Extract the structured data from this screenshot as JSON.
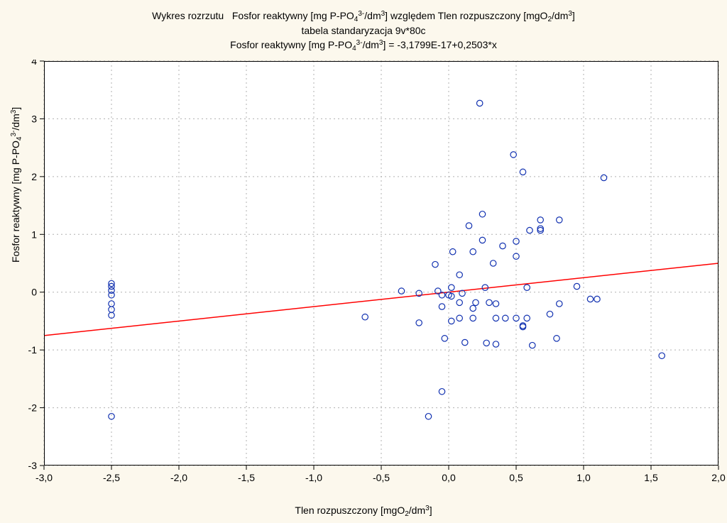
{
  "chart": {
    "type": "scatter",
    "title_line1_a": "Wykres rozrzutu",
    "title_line1_b": "Fosfor reaktywny [mg P-PO",
    "title_line1_b_sub": "4",
    "title_line1_b_sup": "3-",
    "title_line1_c": "/dm",
    "title_line1_c_sup": "3",
    "title_line1_d": "] względem Tlen rozpuszczony [mgO",
    "title_line1_d_sub": "2",
    "title_line1_e": "/dm",
    "title_line1_e_sup": "3",
    "title_line1_f": "]",
    "title_line2": "tabela standaryzacja 9v*80c",
    "title_line3_a": "Fosfor reaktywny [mg P-PO",
    "title_line3_a_sub": "4",
    "title_line3_a_sup": "3-",
    "title_line3_b": "/dm",
    "title_line3_b_sup": "3",
    "title_line3_c": "] = -3,1799E-17+0,2503*x",
    "xlabel_a": "Tlen rozpuszczony [mgO",
    "xlabel_sub": "2",
    "xlabel_b": "/dm",
    "xlabel_sup": "3",
    "xlabel_c": "]",
    "ylabel_a": "Fosfor reaktywny [mg P-PO",
    "ylabel_sub": "4",
    "ylabel_sup": "3-",
    "ylabel_b": "/dm",
    "ylabel_b_sup": "3",
    "ylabel_c": "]",
    "xlim": [
      -3.0,
      2.0
    ],
    "ylim": [
      -3.0,
      4.0
    ],
    "xtick_step": 0.5,
    "ytick_step": 1.0,
    "xticks": [
      "-3,0",
      "-2,5",
      "-2,0",
      "-1,5",
      "-1,0",
      "-0,5",
      "0,0",
      "0,5",
      "1,0",
      "1,5",
      "2,0"
    ],
    "yticks": [
      "-3",
      "-2",
      "-1",
      "0",
      "1",
      "2",
      "3",
      "4"
    ],
    "background_color": "#fcf8ed",
    "plot_bg": "#ffffff",
    "grid_color": "#b0b0b0",
    "grid_dash": "2,4",
    "marker_stroke": "#1030b0",
    "marker_fill": "none",
    "marker_radius": 4.2,
    "marker_stroke_width": 1.2,
    "regression": {
      "slope": 0.2503,
      "intercept": -3.1799e-17,
      "color": "#ff0000",
      "width": 1.5
    },
    "title_fontsize": 14,
    "label_fontsize": 14,
    "tick_fontsize": 14,
    "points": [
      [
        -2.5,
        0.15
      ],
      [
        -2.5,
        0.1
      ],
      [
        -2.5,
        0.03
      ],
      [
        -2.5,
        -0.05
      ],
      [
        -2.5,
        -0.2
      ],
      [
        -2.5,
        -0.3
      ],
      [
        -2.5,
        -0.4
      ],
      [
        -2.5,
        -2.15
      ],
      [
        -0.62,
        -0.43
      ],
      [
        -0.35,
        0.02
      ],
      [
        -0.22,
        -0.02
      ],
      [
        -0.22,
        -0.53
      ],
      [
        -0.15,
        -2.15
      ],
      [
        -0.1,
        0.48
      ],
      [
        -0.08,
        0.02
      ],
      [
        -0.05,
        -0.05
      ],
      [
        -0.05,
        -0.25
      ],
      [
        -0.03,
        -0.8
      ],
      [
        -0.05,
        -1.72
      ],
      [
        0.0,
        -0.05
      ],
      [
        0.02,
        0.08
      ],
      [
        0.02,
        -0.07
      ],
      [
        0.02,
        -0.5
      ],
      [
        0.03,
        0.7
      ],
      [
        0.08,
        0.3
      ],
      [
        0.08,
        -0.18
      ],
      [
        0.08,
        -0.45
      ],
      [
        0.1,
        -0.02
      ],
      [
        0.12,
        -0.87
      ],
      [
        0.15,
        1.15
      ],
      [
        0.18,
        0.7
      ],
      [
        0.18,
        -0.28
      ],
      [
        0.18,
        -0.45
      ],
      [
        0.2,
        -0.18
      ],
      [
        0.23,
        3.27
      ],
      [
        0.25,
        1.35
      ],
      [
        0.25,
        0.9
      ],
      [
        0.27,
        0.08
      ],
      [
        0.28,
        -0.88
      ],
      [
        0.3,
        -0.18
      ],
      [
        0.33,
        0.5
      ],
      [
        0.35,
        -0.2
      ],
      [
        0.35,
        -0.45
      ],
      [
        0.35,
        -0.9
      ],
      [
        0.4,
        0.8
      ],
      [
        0.42,
        -0.45
      ],
      [
        0.48,
        2.38
      ],
      [
        0.5,
        0.88
      ],
      [
        0.5,
        0.62
      ],
      [
        0.5,
        -0.45
      ],
      [
        0.55,
        2.08
      ],
      [
        0.55,
        -0.6
      ],
      [
        0.55,
        -0.58
      ],
      [
        0.58,
        0.08
      ],
      [
        0.58,
        -0.45
      ],
      [
        0.6,
        1.07
      ],
      [
        0.62,
        -0.92
      ],
      [
        0.68,
        1.25
      ],
      [
        0.68,
        1.1
      ],
      [
        0.68,
        1.07
      ],
      [
        0.75,
        -0.38
      ],
      [
        0.8,
        -0.8
      ],
      [
        0.82,
        1.25
      ],
      [
        0.82,
        -0.2
      ],
      [
        0.95,
        0.1
      ],
      [
        1.05,
        -0.12
      ],
      [
        1.1,
        -0.12
      ],
      [
        1.15,
        1.98
      ],
      [
        1.58,
        -1.1
      ]
    ]
  }
}
